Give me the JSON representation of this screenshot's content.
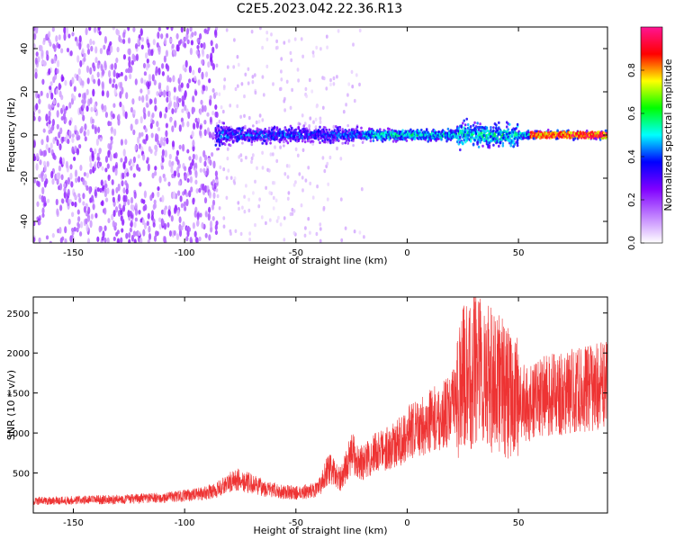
{
  "title": "C2E5.2023.042.22.36.R13",
  "chart_data": [
    {
      "type": "heatmap",
      "xlabel": "Height of straight line (km)",
      "ylabel": "Frequency (Hz)",
      "xlim": [
        -168,
        90
      ],
      "ylim": [
        -50,
        50
      ],
      "xticks": [
        -150,
        -100,
        -50,
        0,
        50
      ],
      "yticks": [
        -40,
        -20,
        0,
        20,
        40
      ],
      "colorbar": {
        "label": "Normalized spectral amplitude",
        "range": [
          0,
          1
        ],
        "ticks": [
          0.0,
          0.2,
          0.4,
          0.6,
          0.8
        ],
        "colormap": [
          "#ffffff",
          "#c080ff",
          "#8000ff",
          "#0000ff",
          "#00ffff",
          "#00ff00",
          "#ffff00",
          "#ff0000",
          "#ff1493"
        ]
      },
      "description_regions": [
        {
          "x_range": [
            -168,
            -86
          ],
          "freq_range": [
            -50,
            50
          ],
          "amplitude": 0.1
        },
        {
          "x_range": [
            -86,
            90
          ],
          "freq_range": [
            -5,
            5
          ],
          "amplitude": 0.6
        }
      ]
    },
    {
      "type": "line",
      "xlabel": "Height of straight line (km)",
      "ylabel": "SNR (10 * v/v)",
      "xlim": [
        -168,
        90
      ],
      "ylim": [
        0,
        2700
      ],
      "xticks": [
        -150,
        -100,
        -50,
        0,
        50
      ],
      "yticks": [
        500,
        1000,
        1500,
        2000,
        2500
      ],
      "color": "#ee3333",
      "series": [
        {
          "x": [
            -168,
            -150,
            -130,
            -110,
            -95,
            -86,
            -80,
            -75,
            -70,
            -60,
            -50,
            -40,
            -37,
            -35,
            -30,
            -25,
            -20,
            -15,
            -10,
            -5,
            0,
            5,
            10,
            15,
            20,
            23,
            25,
            28,
            30,
            35,
            38,
            40,
            45,
            50,
            55,
            60,
            70,
            80,
            90
          ],
          "y": [
            150,
            160,
            170,
            190,
            230,
            280,
            380,
            420,
            360,
            280,
            250,
            290,
            480,
            560,
            420,
            750,
            620,
            750,
            800,
            850,
            1000,
            1050,
            1150,
            1200,
            1300,
            1500,
            1700,
            1650,
            1900,
            1750,
            1650,
            1700,
            1500,
            1400,
            1350,
            1450,
            1500,
            1550,
            1600
          ]
        }
      ]
    }
  ]
}
